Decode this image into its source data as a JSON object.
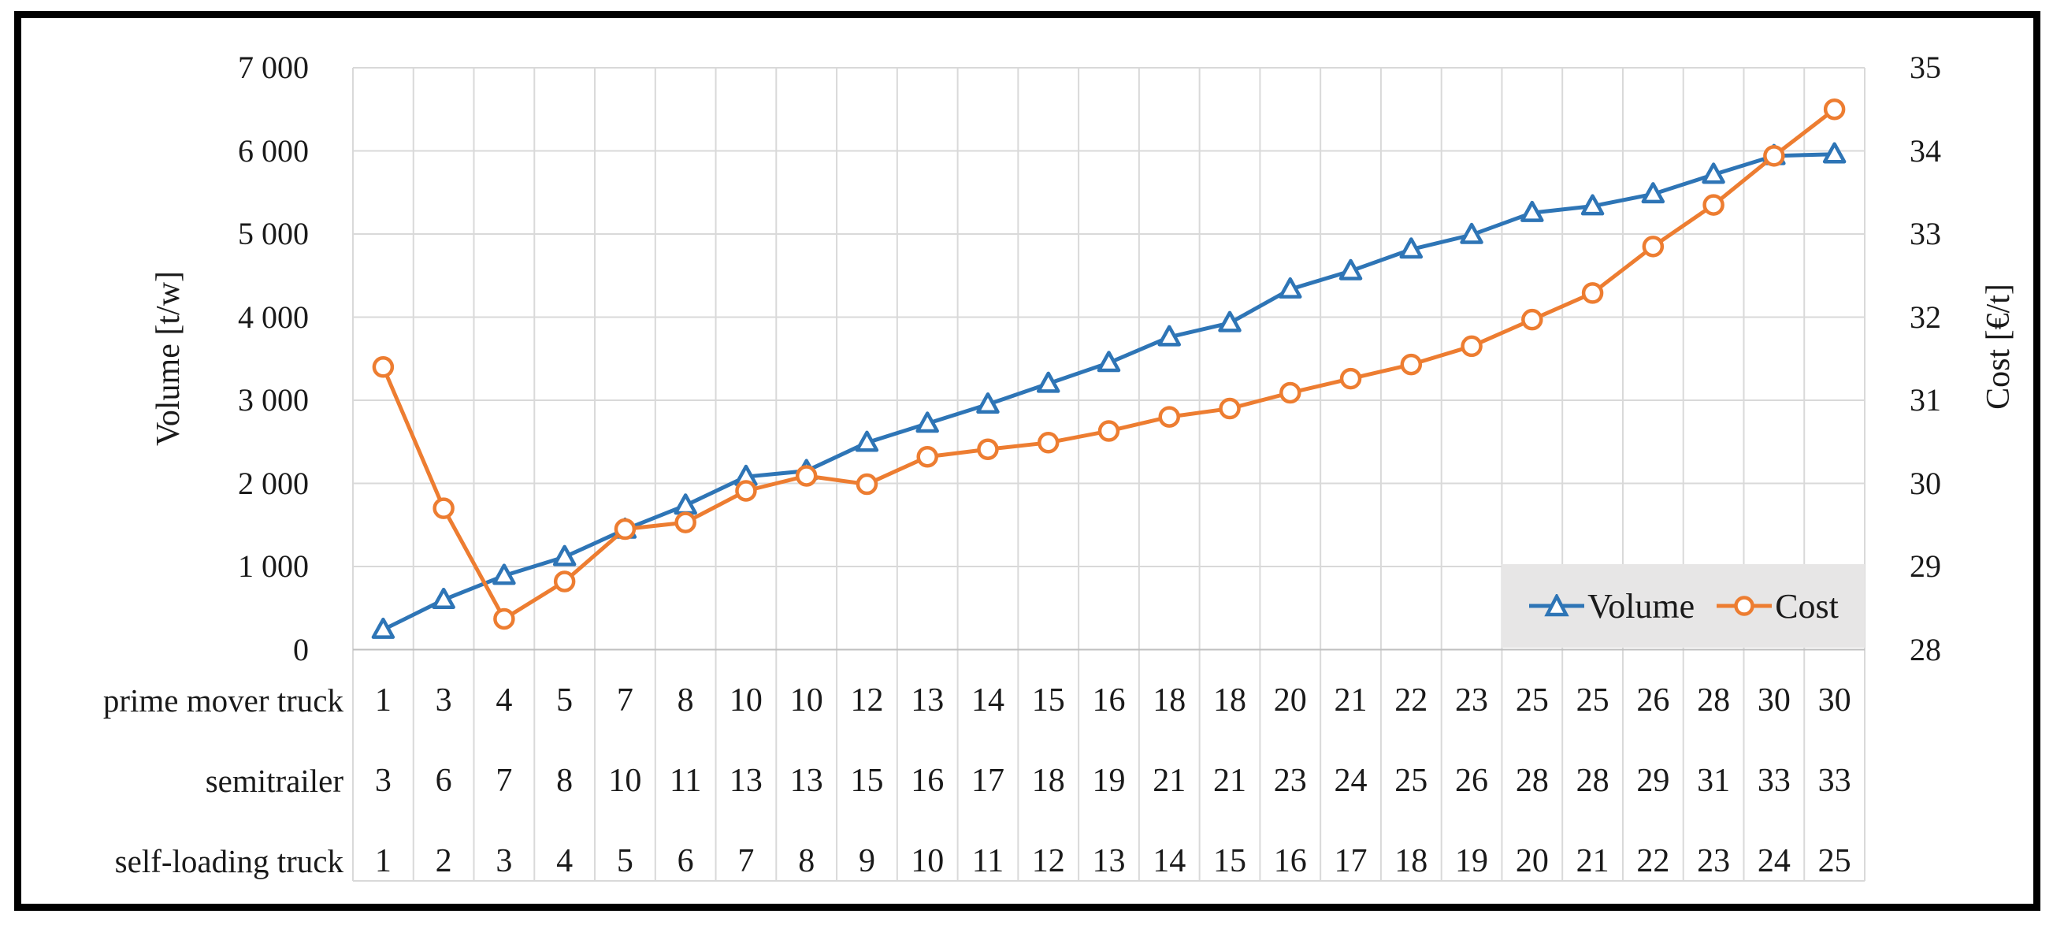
{
  "figure": {
    "background": "#ffffff",
    "border_color": "#000000",
    "grid_color": "#d9d9d9",
    "axis_line_color": "#bfbfbf",
    "legend_background": "#e7e6e6"
  },
  "chart_data": {
    "type": "line",
    "title": "",
    "n_points": 25,
    "grid": true,
    "legend": {
      "position": "bottom-right",
      "items": [
        "Volume",
        "Cost"
      ]
    },
    "left_axis": {
      "title": "Volume [t/w]",
      "min": 0,
      "max": 7000,
      "tick_step": 1000,
      "tick_labels": [
        "7 000",
        "6 000",
        "5 000",
        "4 000",
        "3 000",
        "2 000",
        "1 000",
        "0"
      ]
    },
    "right_axis": {
      "title": "Cost [€/t]",
      "min": 28,
      "max": 35,
      "tick_step": 1,
      "tick_labels": [
        "35",
        "34",
        "33",
        "32",
        "31",
        "30",
        "29",
        "28"
      ]
    },
    "series": [
      {
        "name": "Volume",
        "axis": "left",
        "color": "#2e75b6",
        "marker": "triangle",
        "values": [
          240,
          600,
          890,
          1115,
          1445,
          1735,
          2080,
          2150,
          2490,
          2720,
          2950,
          3200,
          3450,
          3760,
          3930,
          4335,
          4555,
          4815,
          4990,
          5255,
          5335,
          5480,
          5715,
          5940,
          5960
        ]
      },
      {
        "name": "Cost",
        "axis": "right",
        "color": "#ed7d31",
        "marker": "circle",
        "values": [
          31.4,
          29.7,
          28.37,
          28.82,
          29.45,
          29.53,
          29.91,
          30.09,
          29.99,
          30.32,
          30.41,
          30.49,
          30.63,
          30.8,
          30.9,
          31.09,
          31.26,
          31.43,
          31.65,
          31.97,
          32.29,
          32.85,
          33.35,
          33.94,
          34.5
        ]
      }
    ]
  },
  "table": {
    "rows": [
      {
        "label": "prime mover truck",
        "values": [
          1,
          3,
          4,
          5,
          7,
          8,
          10,
          10,
          12,
          13,
          14,
          15,
          16,
          18,
          18,
          20,
          21,
          22,
          23,
          25,
          25,
          26,
          28,
          30,
          30
        ]
      },
      {
        "label": "semitrailer",
        "values": [
          3,
          6,
          7,
          8,
          10,
          11,
          13,
          13,
          15,
          16,
          17,
          18,
          19,
          21,
          21,
          23,
          24,
          25,
          26,
          28,
          28,
          29,
          31,
          33,
          33
        ]
      },
      {
        "label": "self-loading truck",
        "values": [
          1,
          2,
          3,
          4,
          5,
          6,
          7,
          8,
          9,
          10,
          11,
          12,
          13,
          14,
          15,
          16,
          17,
          18,
          19,
          20,
          21,
          22,
          23,
          24,
          25
        ]
      }
    ]
  }
}
